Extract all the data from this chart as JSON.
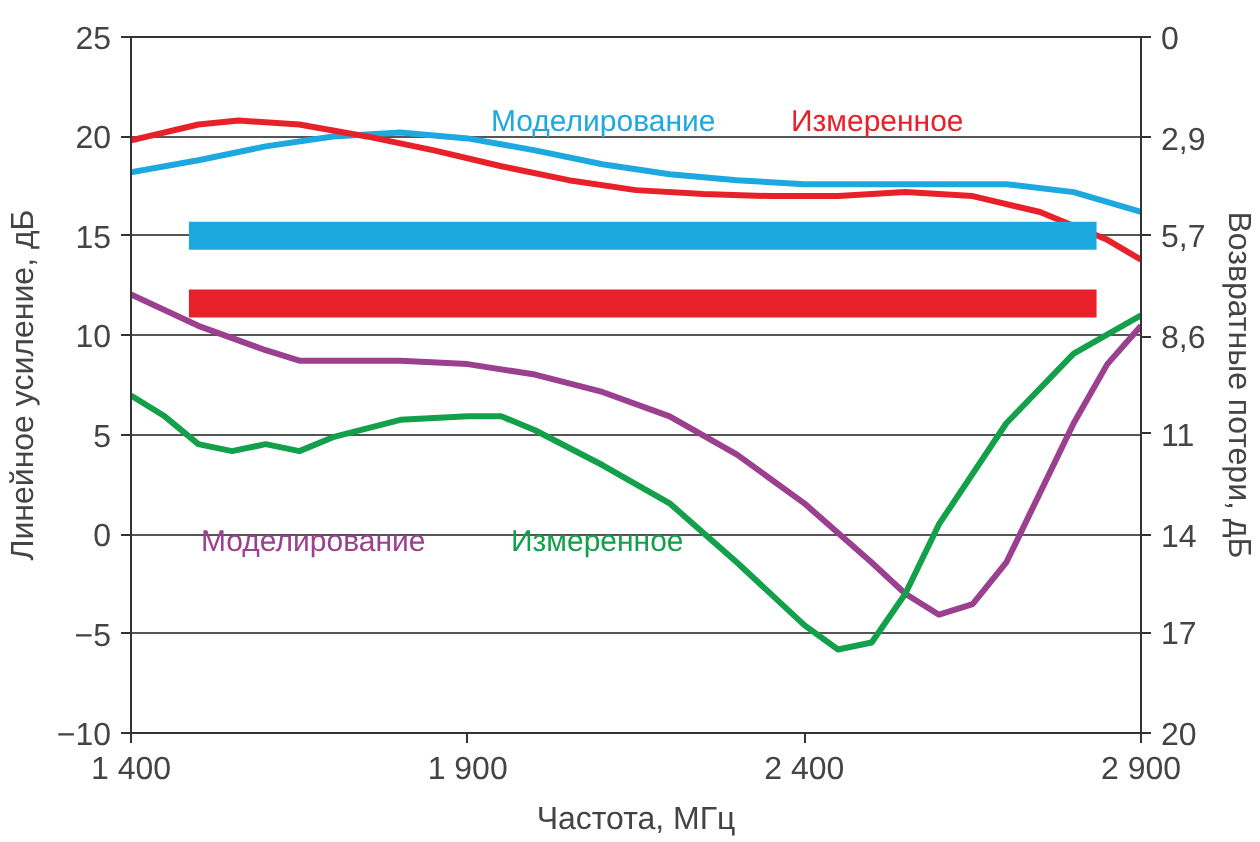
{
  "chart_data": {
    "type": "line",
    "xlabel": "Частота, МГц",
    "ylabel": "Линейное усиление, дБ",
    "y2label": "Возвратные потери, дБ",
    "xlim": [
      1400,
      2900
    ],
    "xticks": [
      {
        "value": 1400,
        "label": "1 400"
      },
      {
        "value": 1900,
        "label": "1 900"
      },
      {
        "value": 2400,
        "label": "2 400"
      },
      {
        "value": 2900,
        "label": "2 900"
      }
    ],
    "ylim": [
      -10,
      25
    ],
    "yticks": [
      {
        "value": -10,
        "label": "−10"
      },
      {
        "value": -5,
        "label": "−5"
      },
      0,
      5,
      10,
      15,
      20,
      25
    ],
    "y2lim": [
      20,
      0
    ],
    "y2ticks": [
      0,
      {
        "value": 2.9,
        "label": "2,9"
      },
      {
        "value": 5.7,
        "label": "5,7"
      },
      {
        "value": 8.6,
        "label": "8,6"
      },
      {
        "value": 11.4,
        "label": "11"
      },
      {
        "value": 14.3,
        "label": "14"
      },
      {
        "value": 17.1,
        "label": "17"
      },
      20
    ],
    "grid": "y",
    "line_style": "solid",
    "series": [
      {
        "name": "Моделирование",
        "color": "#1ea8e0",
        "x": [
          1400,
          1500,
          1600,
          1700,
          1800,
          1900,
          2000,
          2100,
          2200,
          2300,
          2400,
          2500,
          2600,
          2700,
          2800,
          2900
        ],
        "values": [
          18.2,
          18.8,
          19.5,
          20.0,
          20.2,
          19.9,
          19.3,
          18.6,
          18.1,
          17.8,
          17.6,
          17.6,
          17.6,
          17.6,
          17.2,
          16.2
        ]
      },
      {
        "name": "Измеренное",
        "color": "#e8202a",
        "x": [
          1400,
          1500,
          1560,
          1650,
          1750,
          1850,
          1950,
          2050,
          2150,
          2250,
          2350,
          2450,
          2550,
          2650,
          2750,
          2850,
          2900
        ],
        "values": [
          19.8,
          20.6,
          20.8,
          20.6,
          20.0,
          19.3,
          18.5,
          17.8,
          17.3,
          17.1,
          17.0,
          17.0,
          17.2,
          17.0,
          16.2,
          14.8,
          13.8
        ]
      },
      {
        "name": "Моделирование",
        "color": "#9b3f8f",
        "axis": "y2",
        "x": [
          1400,
          1500,
          1600,
          1650,
          1700,
          1800,
          1900,
          2000,
          2100,
          2200,
          2300,
          2400,
          2500,
          2550,
          2600,
          2650,
          2700,
          2750,
          2800,
          2850,
          2900
        ],
        "values": [
          7.4,
          8.3,
          9.0,
          9.3,
          9.3,
          9.3,
          9.4,
          9.7,
          10.2,
          10.9,
          12.0,
          13.4,
          15.1,
          16.0,
          16.6,
          16.3,
          15.1,
          13.1,
          11.1,
          9.4,
          8.3
        ]
      },
      {
        "name": "Измеренное",
        "color": "#12a04a",
        "axis": "y2",
        "x": [
          1400,
          1450,
          1500,
          1550,
          1600,
          1650,
          1700,
          1800,
          1900,
          1950,
          2000,
          2100,
          2200,
          2300,
          2400,
          2450,
          2500,
          2550,
          2600,
          2700,
          2800,
          2900
        ],
        "values": [
          10.3,
          10.9,
          11.7,
          11.9,
          11.7,
          11.9,
          11.5,
          11.0,
          10.9,
          10.9,
          11.3,
          12.3,
          13.4,
          15.1,
          16.9,
          17.6,
          17.4,
          16.0,
          14.0,
          11.1,
          9.1,
          8.0
        ]
      },
      {
        "color": "#1ea8e0",
        "x": [
          1486,
          2834
        ],
        "values": [
          15.0,
          15.0
        ]
      },
      {
        "color": "#e8202a",
        "x": [
          1486,
          2834
        ],
        "values": [
          11.6,
          11.6
        ]
      }
    ]
  }
}
